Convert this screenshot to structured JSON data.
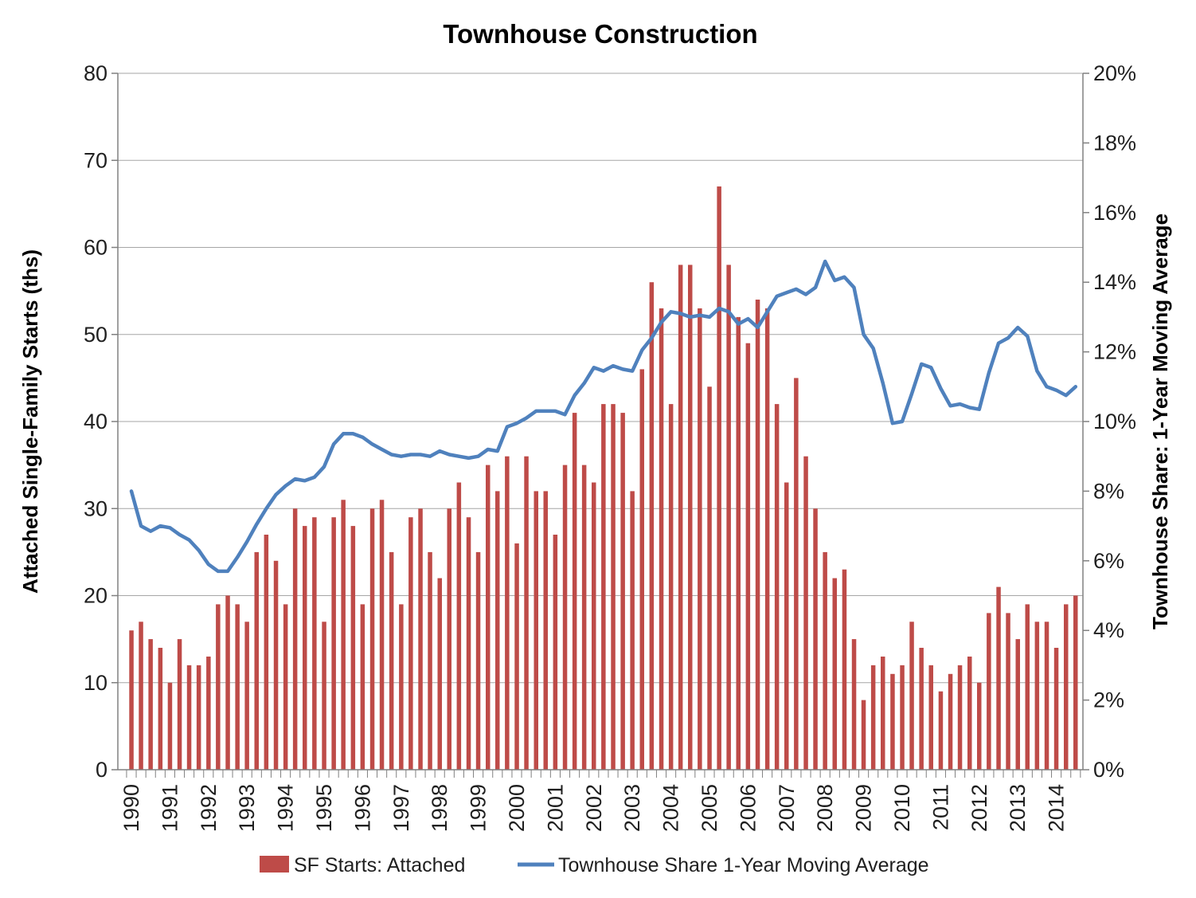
{
  "title": "Townhouse Construction",
  "legend": {
    "bars_label": "SF Starts: Attached",
    "line_label": "Townhouse Share 1-Year Moving Average"
  },
  "colors": {
    "bar": "#BE4B48",
    "line": "#4F81BD",
    "grid": "#A6A6A6",
    "axis": "#808080",
    "text": "#262626"
  },
  "chart_data": {
    "type": "bar",
    "subtype": "dual-axis bar+line combo, quarterly categories",
    "title": "Townhouse Construction",
    "x": {
      "start_year": 1990,
      "quarters_per_year": 4,
      "last_period": "2014 Q3",
      "year_labels": [
        "1990",
        "1991",
        "1992",
        "1993",
        "1994",
        "1995",
        "1996",
        "1997",
        "1998",
        "1999",
        "2000",
        "2001",
        "2002",
        "2003",
        "2004",
        "2005",
        "2006",
        "2007",
        "2008",
        "2009",
        "2010",
        "2011",
        "2012",
        "2013",
        "2014"
      ]
    },
    "left_axis": {
      "title": "Attached Single-Family Starts (ths)",
      "min": 0,
      "max": 80,
      "step": 10,
      "tick_labels": [
        "0",
        "10",
        "20",
        "30",
        "40",
        "50",
        "60",
        "70",
        "80"
      ]
    },
    "right_axis": {
      "title": "Townhouse Share: 1-Year Moving Average",
      "min": 0,
      "max": 20,
      "step": 2,
      "tick_labels": [
        "0%",
        "2%",
        "4%",
        "6%",
        "8%",
        "10%",
        "12%",
        "14%",
        "16%",
        "18%",
        "20%"
      ]
    },
    "grid": true,
    "legend_position": "bottom",
    "series": [
      {
        "name": "SF Starts: Attached",
        "type": "bar",
        "axis": "left",
        "color": "#BE4B48",
        "values": [
          16,
          17,
          15,
          14,
          10,
          15,
          12,
          12,
          13,
          19,
          20,
          19,
          17,
          25,
          27,
          24,
          19,
          30,
          28,
          29,
          17,
          29,
          31,
          28,
          19,
          30,
          31,
          25,
          19,
          29,
          30,
          25,
          22,
          30,
          33,
          29,
          25,
          35,
          32,
          36,
          26,
          36,
          32,
          32,
          27,
          35,
          41,
          35,
          33,
          42,
          42,
          41,
          32,
          46,
          56,
          53,
          42,
          58,
          58,
          53,
          44,
          67,
          58,
          52,
          49,
          54,
          53,
          42,
          33,
          45,
          36,
          30,
          25,
          22,
          23,
          15,
          8,
          12,
          13,
          11,
          12,
          17,
          14,
          12,
          9,
          11,
          12,
          13,
          10,
          18,
          21,
          18,
          15,
          19,
          17,
          17,
          14,
          19,
          20
        ]
      },
      {
        "name": "Townhouse Share 1-Year Moving Average",
        "type": "line",
        "axis": "right",
        "unit": "percent",
        "color": "#4F81BD",
        "values": [
          8.0,
          7.0,
          6.85,
          7.0,
          6.95,
          6.75,
          6.6,
          6.3,
          5.9,
          5.7,
          5.7,
          6.1,
          6.55,
          7.05,
          7.5,
          7.9,
          8.15,
          8.35,
          8.3,
          8.4,
          8.7,
          9.35,
          9.65,
          9.65,
          9.55,
          9.35,
          9.2,
          9.05,
          9.0,
          9.05,
          9.05,
          9.0,
          9.15,
          9.05,
          9.0,
          8.95,
          9.0,
          9.2,
          9.15,
          9.85,
          9.95,
          10.1,
          10.3,
          10.3,
          10.3,
          10.2,
          10.75,
          11.1,
          11.55,
          11.45,
          11.6,
          11.5,
          11.45,
          12.05,
          12.4,
          12.85,
          13.15,
          13.1,
          13.0,
          13.05,
          13.0,
          13.25,
          13.15,
          12.8,
          12.95,
          12.7,
          13.15,
          13.6,
          13.7,
          13.8,
          13.65,
          13.85,
          14.6,
          14.05,
          14.15,
          13.85,
          12.5,
          12.1,
          11.1,
          9.95,
          10.0,
          10.8,
          11.65,
          11.55,
          10.95,
          10.45,
          10.5,
          10.4,
          10.35,
          11.4,
          12.25,
          12.4,
          12.7,
          12.45,
          11.45,
          11.0,
          10.9,
          10.75,
          11.0
        ]
      }
    ]
  }
}
